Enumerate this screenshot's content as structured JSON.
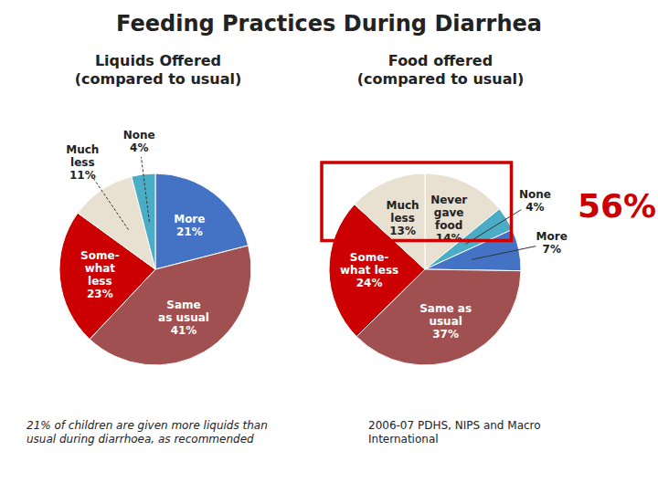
{
  "chart_data": [
    {
      "type": "pie",
      "title": "Feeding Practices During Diarrhea",
      "subtitle": "Liquids Offered\n(compared to usual)",
      "categories": [
        "More",
        "Same\nas usual",
        "Some-\nwhat\nless",
        "Much\nless",
        "None"
      ],
      "values": [
        21,
        41,
        23,
        11,
        4
      ],
      "value_labels": [
        "21%",
        "41%",
        "23%",
        "11%",
        "4%"
      ],
      "colors": [
        "#4472c4",
        "#a05050",
        "#cc0000",
        "#e8e0d0",
        "#4bacc6"
      ],
      "data_labels": true,
      "annotations": [
        {
          "text": "21% of children are given more liquids than\nusual during diarrhoea, as recommended"
        }
      ]
    },
    {
      "type": "pie",
      "subtitle": "Food offered\n(compared to usual)",
      "categories": [
        "Never\ngave\nfood",
        "None",
        "More",
        "Same as\nusual",
        "Some-\nwhat less",
        "Much\nless"
      ],
      "values": [
        14,
        4,
        7,
        37,
        24,
        13
      ],
      "value_labels": [
        "14%",
        "4%",
        "7%",
        "37%",
        "24%",
        "13%"
      ],
      "colors": [
        "#e8e0d0",
        "#4bacc6",
        "#4472c4",
        "#a05050",
        "#cc0000",
        "#e8e0d0"
      ],
      "data_labels": true,
      "annotations": [
        {
          "text": "56%",
          "color": "#cc0000"
        },
        {
          "text": "2006-07 PDHS, NIPS and Macro\nInternational"
        }
      ]
    }
  ]
}
